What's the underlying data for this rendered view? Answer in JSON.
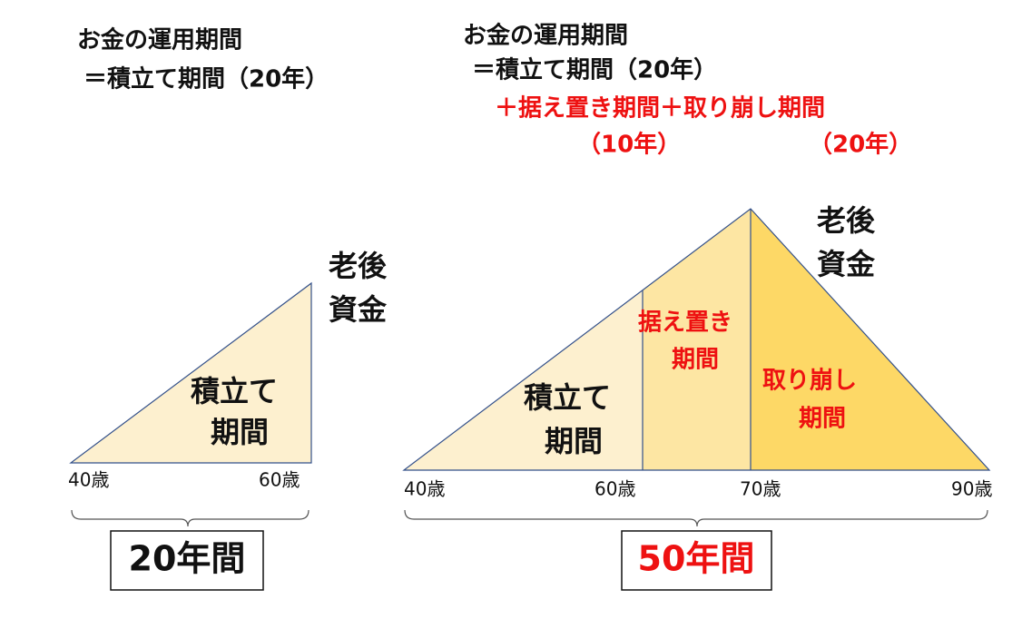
{
  "left": {
    "title": [
      "お金の運用期間",
      "＝積立て期間（20年）"
    ],
    "funds": [
      "老後",
      "資金"
    ],
    "region": [
      "積立て",
      "期間"
    ],
    "ages": [
      "40歳",
      "60歳"
    ],
    "span": "20年間"
  },
  "right": {
    "title": [
      "お金の運用期間",
      "＝積立て期間（20年）"
    ],
    "title_added": "＋据え置き期間＋取り崩し期間",
    "durations": [
      "（10年）",
      "（20年）"
    ],
    "funds": [
      "老後",
      "資金"
    ],
    "regions": [
      [
        "積立て",
        "期間"
      ],
      [
        "据え置き",
        "期間"
      ],
      [
        "取り崩し",
        "期間"
      ]
    ],
    "ages": [
      "40歳",
      "60歳",
      "70歳",
      "90歳"
    ],
    "span": "50年間"
  }
}
